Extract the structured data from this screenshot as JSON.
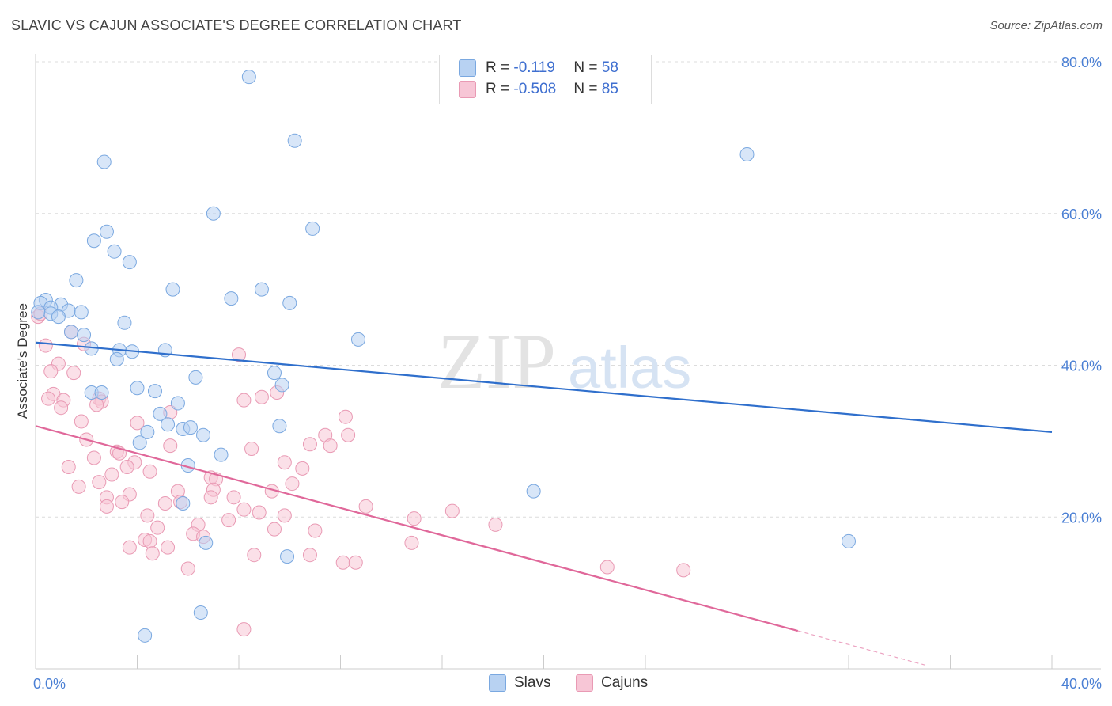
{
  "title": "SLAVIC VS CAJUN ASSOCIATE'S DEGREE CORRELATION CHART",
  "source": "Source: ZipAtlas.com",
  "watermark": {
    "zip": "ZIP",
    "atlas": "atlas"
  },
  "legend": {
    "rows": [
      {
        "r_label": "R = ",
        "r_value": "-0.119",
        "n_label": "N = ",
        "n_value": "58"
      },
      {
        "r_label": "R = ",
        "r_value": "-0.508",
        "n_label": "N = ",
        "n_value": "85"
      }
    ]
  },
  "bottom_legend": {
    "slavs": "Slavs",
    "cajuns": "Cajuns"
  },
  "colors": {
    "slavs_fill": "#b8d2f2",
    "slavs_stroke": "#7aa8e0",
    "slavs_line": "#2f6fcc",
    "cajuns_fill": "#f7c6d6",
    "cajuns_stroke": "#e99ab4",
    "cajuns_line": "#e0689a",
    "tick_text": "#4a7fd4"
  },
  "chart_data": {
    "type": "scatter",
    "title": "SLAVIC VS CAJUN ASSOCIATE'S DEGREE CORRELATION CHART",
    "xlabel": "",
    "ylabel": "Associate's Degree",
    "xlim": [
      0,
      40
    ],
    "ylim": [
      0,
      80
    ],
    "x_tick_labels": [
      "0.0%",
      "40.0%"
    ],
    "y_ticks": [
      20,
      40,
      60,
      80
    ],
    "y_tick_labels": [
      "20.0%",
      "40.0%",
      "60.0%",
      "80.0%"
    ],
    "grid": true,
    "series": [
      {
        "name": "Slavs",
        "r": -0.119,
        "n": 58,
        "trend": {
          "x": [
            0,
            40
          ],
          "y": [
            43.0,
            31.2
          ]
        },
        "points": [
          [
            8.4,
            78.0
          ],
          [
            10.2,
            69.6
          ],
          [
            2.7,
            66.8
          ],
          [
            28.0,
            67.8
          ],
          [
            7.0,
            60.0
          ],
          [
            10.9,
            58.0
          ],
          [
            2.8,
            57.6
          ],
          [
            2.3,
            56.4
          ],
          [
            3.1,
            55.0
          ],
          [
            3.7,
            53.6
          ],
          [
            1.6,
            51.2
          ],
          [
            5.4,
            50.0
          ],
          [
            8.9,
            50.0
          ],
          [
            7.7,
            48.8
          ],
          [
            10.0,
            48.2
          ],
          [
            0.4,
            48.6
          ],
          [
            0.2,
            48.2
          ],
          [
            1.0,
            48.0
          ],
          [
            0.6,
            47.6
          ],
          [
            1.3,
            47.2
          ],
          [
            1.8,
            47.0
          ],
          [
            0.6,
            46.8
          ],
          [
            0.9,
            46.4
          ],
          [
            3.5,
            45.6
          ],
          [
            1.4,
            44.4
          ],
          [
            1.9,
            44.0
          ],
          [
            12.7,
            43.4
          ],
          [
            2.2,
            42.2
          ],
          [
            3.3,
            42.0
          ],
          [
            3.8,
            41.8
          ],
          [
            5.1,
            42.0
          ],
          [
            3.2,
            40.8
          ],
          [
            9.4,
            39.0
          ],
          [
            6.3,
            38.4
          ],
          [
            9.7,
            37.4
          ],
          [
            4.0,
            37.0
          ],
          [
            4.7,
            36.6
          ],
          [
            2.2,
            36.4
          ],
          [
            2.6,
            36.4
          ],
          [
            5.6,
            35.0
          ],
          [
            4.9,
            33.6
          ],
          [
            5.2,
            32.2
          ],
          [
            9.6,
            32.0
          ],
          [
            5.8,
            31.6
          ],
          [
            6.1,
            31.8
          ],
          [
            6.6,
            30.8
          ],
          [
            4.4,
            31.2
          ],
          [
            4.1,
            29.8
          ],
          [
            7.3,
            28.2
          ],
          [
            6.0,
            26.8
          ],
          [
            19.6,
            23.4
          ],
          [
            5.8,
            21.8
          ],
          [
            6.7,
            16.6
          ],
          [
            9.9,
            14.8
          ],
          [
            32.0,
            16.8
          ],
          [
            6.5,
            7.4
          ],
          [
            4.3,
            4.4
          ],
          [
            0.1,
            47.0
          ]
        ]
      },
      {
        "name": "Cajuns",
        "r": -0.508,
        "n": 85,
        "trend": {
          "x": [
            0,
            30.0
          ],
          "y": [
            32.0,
            5.0
          ]
        },
        "trend_dashed": {
          "x": [
            30.0,
            35.0
          ],
          "y": [
            5.0,
            0.5
          ]
        },
        "points": [
          [
            0.1,
            46.4
          ],
          [
            0.2,
            46.8
          ],
          [
            0.4,
            42.6
          ],
          [
            1.4,
            44.4
          ],
          [
            1.9,
            42.8
          ],
          [
            8.0,
            41.4
          ],
          [
            0.9,
            40.2
          ],
          [
            0.6,
            39.2
          ],
          [
            1.5,
            39.0
          ],
          [
            0.7,
            36.2
          ],
          [
            9.5,
            36.4
          ],
          [
            2.5,
            35.6
          ],
          [
            0.5,
            35.6
          ],
          [
            1.1,
            35.4
          ],
          [
            8.2,
            35.4
          ],
          [
            2.6,
            35.2
          ],
          [
            8.9,
            35.8
          ],
          [
            2.4,
            34.8
          ],
          [
            1.0,
            34.4
          ],
          [
            5.3,
            33.8
          ],
          [
            12.2,
            33.2
          ],
          [
            4.0,
            32.4
          ],
          [
            1.8,
            32.6
          ],
          [
            11.4,
            30.8
          ],
          [
            12.3,
            30.8
          ],
          [
            2.0,
            30.2
          ],
          [
            10.8,
            29.6
          ],
          [
            11.6,
            29.4
          ],
          [
            5.3,
            29.4
          ],
          [
            8.5,
            29.0
          ],
          [
            3.2,
            28.6
          ],
          [
            3.3,
            28.4
          ],
          [
            2.3,
            27.8
          ],
          [
            3.9,
            27.2
          ],
          [
            9.8,
            27.2
          ],
          [
            10.5,
            26.4
          ],
          [
            1.3,
            26.6
          ],
          [
            3.6,
            26.6
          ],
          [
            4.5,
            26.0
          ],
          [
            3.0,
            25.6
          ],
          [
            6.9,
            25.2
          ],
          [
            7.1,
            25.0
          ],
          [
            2.5,
            24.6
          ],
          [
            10.1,
            24.4
          ],
          [
            1.7,
            24.0
          ],
          [
            7.0,
            23.6
          ],
          [
            5.6,
            23.4
          ],
          [
            3.7,
            23.0
          ],
          [
            9.3,
            23.4
          ],
          [
            2.8,
            22.6
          ],
          [
            6.9,
            22.6
          ],
          [
            7.8,
            22.6
          ],
          [
            3.4,
            22.0
          ],
          [
            5.1,
            21.8
          ],
          [
            5.7,
            22.0
          ],
          [
            2.8,
            21.4
          ],
          [
            8.2,
            21.0
          ],
          [
            13.0,
            21.4
          ],
          [
            8.8,
            20.6
          ],
          [
            16.4,
            20.8
          ],
          [
            4.4,
            20.2
          ],
          [
            9.8,
            20.2
          ],
          [
            14.9,
            19.8
          ],
          [
            7.6,
            19.6
          ],
          [
            18.1,
            19.0
          ],
          [
            6.4,
            19.0
          ],
          [
            4.8,
            18.6
          ],
          [
            9.4,
            18.4
          ],
          [
            11.0,
            18.2
          ],
          [
            6.2,
            17.8
          ],
          [
            4.3,
            17.0
          ],
          [
            4.5,
            16.8
          ],
          [
            3.7,
            16.0
          ],
          [
            5.2,
            16.0
          ],
          [
            14.8,
            16.6
          ],
          [
            6.6,
            17.4
          ],
          [
            4.6,
            15.2
          ],
          [
            8.6,
            15.0
          ],
          [
            10.8,
            15.0
          ],
          [
            12.1,
            14.0
          ],
          [
            12.6,
            14.0
          ],
          [
            6.0,
            13.2
          ],
          [
            22.5,
            13.4
          ],
          [
            25.5,
            13.0
          ],
          [
            8.2,
            5.2
          ]
        ]
      }
    ]
  }
}
